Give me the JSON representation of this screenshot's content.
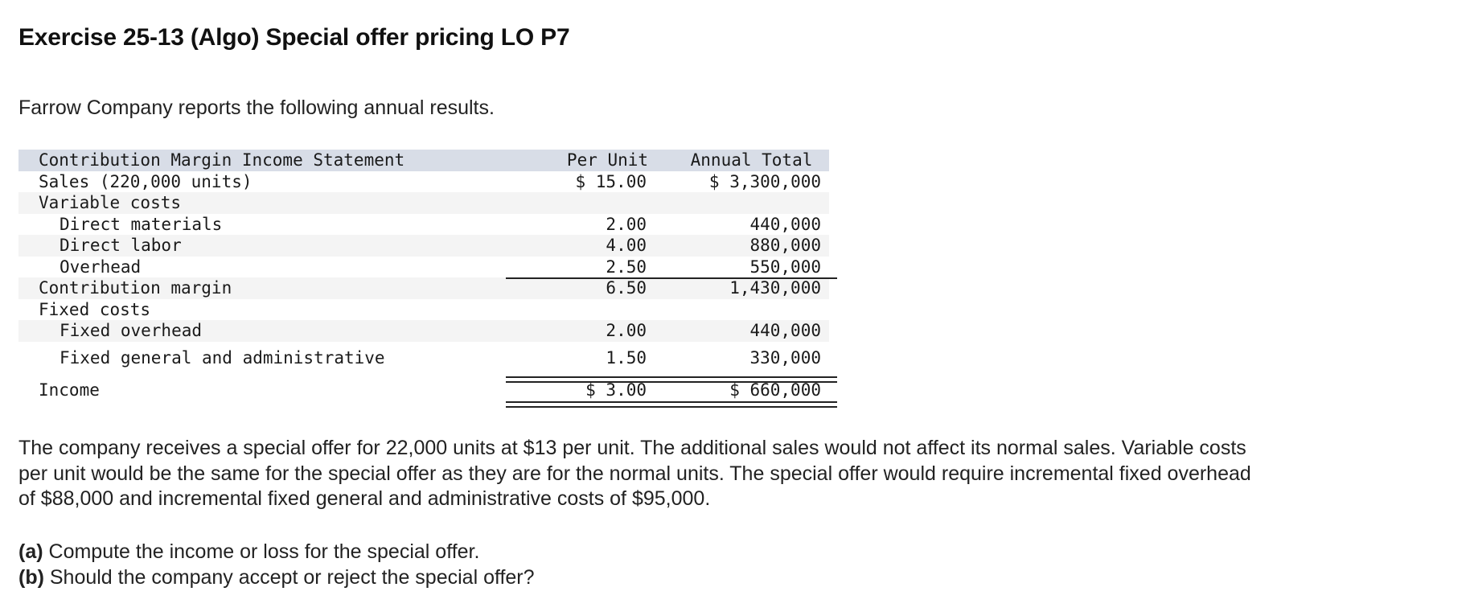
{
  "title": "Exercise 25-13 (Algo) Special offer pricing LO P7",
  "intro": "Farrow Company reports the following annual results.",
  "statement": {
    "header": {
      "label": "Contribution Margin Income Statement",
      "col1": "Per Unit",
      "col2": "Annual Total"
    },
    "rows": [
      {
        "label": "Sales (220,000 units)",
        "per_unit": "$ 15.00",
        "annual": "$ 3,300,000"
      },
      {
        "label": "Variable costs",
        "per_unit": "",
        "annual": ""
      },
      {
        "label": "Direct materials",
        "per_unit": "2.00",
        "annual": "440,000"
      },
      {
        "label": "Direct labor",
        "per_unit": "4.00",
        "annual": "880,000"
      },
      {
        "label": "Overhead",
        "per_unit": "2.50",
        "annual": "550,000"
      },
      {
        "label": "Contribution margin",
        "per_unit": "6.50",
        "annual": "1,430,000"
      },
      {
        "label": "Fixed costs",
        "per_unit": "",
        "annual": ""
      },
      {
        "label": "Fixed overhead",
        "per_unit": "2.00",
        "annual": "440,000"
      },
      {
        "label": "Fixed general and administrative",
        "per_unit": "1.50",
        "annual": "330,000"
      },
      {
        "label": "Income",
        "per_unit": "$ 3.00",
        "annual": "$ 660,000"
      }
    ]
  },
  "paragraph": "The company receives a special offer for 22,000 units at $13 per unit. The additional sales would not affect its normal sales. Variable costs per unit would be the same for the special offer as they are for the normal units. The special offer would require incremental fixed overhead of $88,000 and incremental fixed general and administrative costs of $95,000.",
  "questions": [
    {
      "tag": "(a)",
      "text": " Compute the income or loss for the special offer."
    },
    {
      "tag": "(b)",
      "text": " Should the company accept or reject the special offer?"
    }
  ]
}
